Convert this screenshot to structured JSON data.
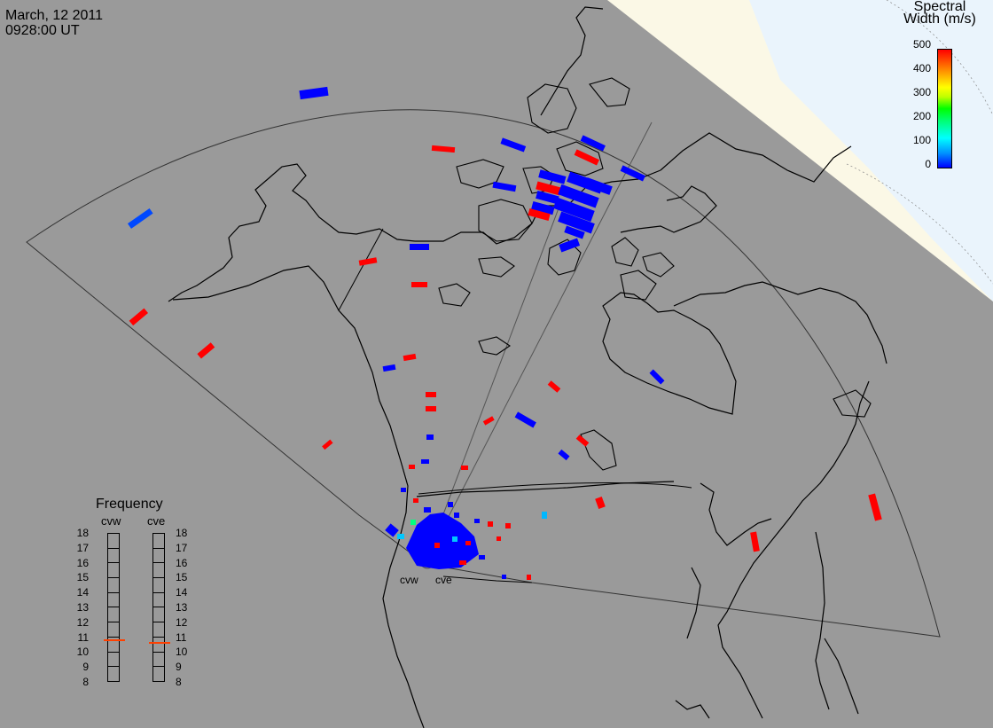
{
  "title": {
    "date": "March, 12 2011",
    "time": "0928:00 UT"
  },
  "colorbar": {
    "title_line1": "Spectral",
    "title_line2": "Width (m/s)",
    "labels": [
      "500",
      "400",
      "300",
      "200",
      "100",
      "0"
    ],
    "min": 0,
    "max": 500
  },
  "frequency": {
    "title": "Frequency",
    "radars": [
      "cvw",
      "cve"
    ],
    "ticks": [
      "18",
      "17",
      "16",
      "15",
      "14",
      "13",
      "12",
      "11",
      "10",
      "9",
      "8"
    ],
    "range": [
      8,
      18
    ],
    "current_mhz": {
      "cvw": 10.8,
      "cve": 10.6
    }
  },
  "radar_sites": [
    {
      "name": "cvw"
    },
    {
      "name": "cve"
    }
  ],
  "colors": {
    "land": "#9a9a9a",
    "dayside": "#fbf8e6",
    "polar": "#eaf4fc",
    "coast": "#000000",
    "low_width": "#0000ff",
    "high_width": "#ff0000",
    "indicator": "#ff4000"
  }
}
